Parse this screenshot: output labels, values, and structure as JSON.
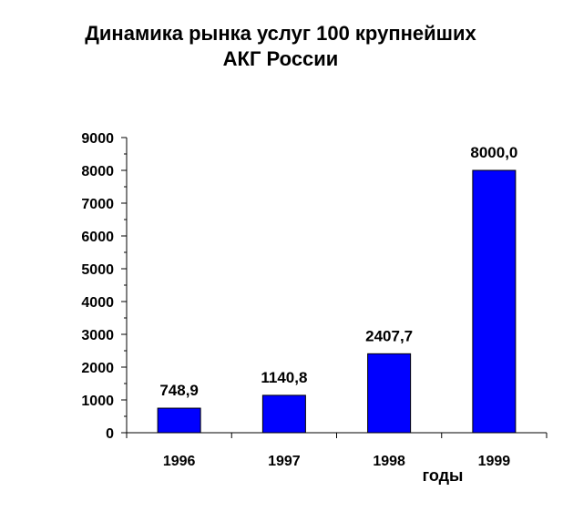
{
  "chart_data": {
    "type": "bar",
    "title_lines": [
      "Динамика рынка услуг 100 крупнейших",
      "АКГ России"
    ],
    "xlabel": "годы",
    "ylabel": "",
    "categories": [
      "1996",
      "1997",
      "1998",
      "1999"
    ],
    "values": [
      748.9,
      1140.8,
      2407.7,
      8000.0
    ],
    "value_labels": [
      "748,9",
      "1140,8",
      "2407,7",
      "8000,0"
    ],
    "ylim": [
      0,
      9000
    ],
    "yticks": [
      "0",
      "1000",
      "2000",
      "3000",
      "4000",
      "5000",
      "6000",
      "7000",
      "8000",
      "9000"
    ],
    "bar_color": "#0000ff",
    "bar_edge_color": "#000000",
    "grid": false,
    "legend": "none"
  }
}
